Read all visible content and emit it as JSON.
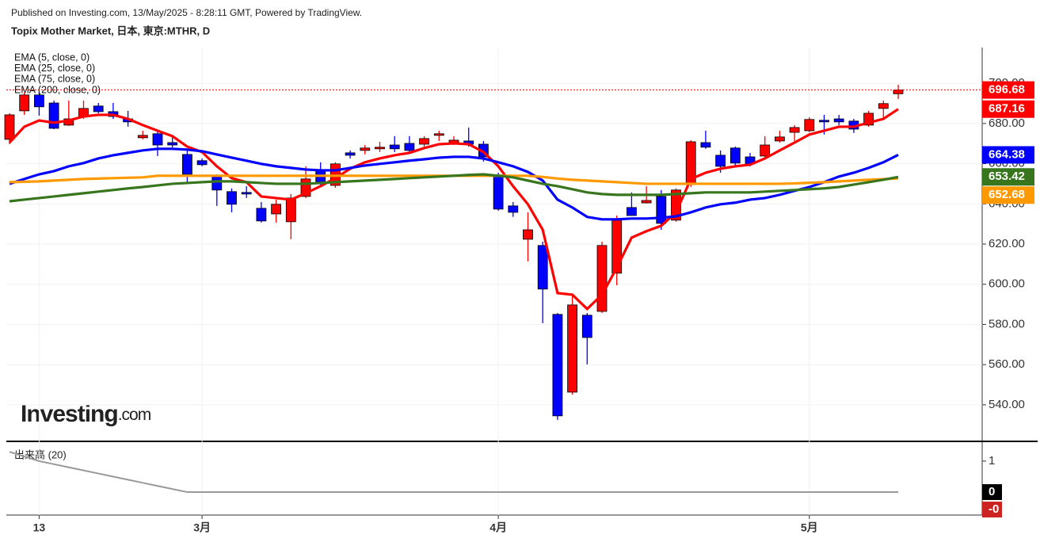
{
  "header": {
    "published": "Published on Investing.com, 13/May/2025 - 8:28:11 GMT, Powered by TradingView.",
    "brand": "Investing",
    "brand_suffix": ".com"
  },
  "chart_data": [
    {
      "type": "candlestick",
      "title": "Topix Mother Market, 日本, 東京:MTHR, D",
      "categories": [
        null,
        null,
        "13",
        null,
        null,
        null,
        null,
        null,
        null,
        null,
        null,
        null,
        null,
        "3月",
        null,
        null,
        null,
        null,
        null,
        null,
        null,
        null,
        null,
        null,
        null,
        null,
        null,
        null,
        null,
        null,
        null,
        null,
        null,
        "4月",
        null,
        null,
        null,
        null,
        null,
        null,
        null,
        null,
        null,
        null,
        null,
        null,
        null,
        null,
        null,
        null,
        null,
        null,
        null,
        null,
        "5月",
        null,
        null,
        null,
        null,
        null,
        null
      ],
      "open": [
        672.1,
        686.3,
        694.2,
        690.2,
        679.2,
        683.5,
        688.7,
        685.9,
        682.3,
        672.9,
        674.9,
        670.5,
        664.6,
        661.5,
        653.6,
        646.1,
        645.7,
        637.8,
        635.0,
        631.1,
        643.7,
        657.1,
        649.2,
        665.4,
        666.6,
        667.4,
        669.3,
        670.1,
        669.7,
        674.1,
        670.5,
        671.3,
        669.7,
        654.4,
        639.0,
        622.4,
        619.3,
        585.0,
        546.3,
        584.6,
        586.5,
        605.5,
        638.2,
        640.5,
        643.7,
        631.9,
        649.6,
        670.5,
        664.2,
        667.8,
        663.4,
        663.8,
        671.3,
        675.6,
        676.4,
        681.6,
        682.3,
        681.2,
        679.2,
        687.5,
        694.8
      ],
      "high": [
        685.1,
        695.4,
        695.8,
        691.4,
        691.4,
        691.4,
        690.2,
        690.2,
        686.3,
        676.4,
        676.4,
        674.1,
        666.6,
        662.6,
        654.7,
        647.7,
        648.8,
        640.9,
        642.1,
        644.9,
        658.7,
        660.7,
        660.7,
        666.6,
        669.3,
        670.9,
        673.7,
        673.7,
        673.7,
        676.4,
        673.7,
        678.0,
        671.3,
        655.5,
        640.9,
        635.8,
        621.2,
        585.7,
        594.8,
        585.7,
        621.2,
        634.2,
        645.7,
        648.8,
        646.9,
        647.7,
        671.7,
        676.4,
        666.6,
        668.5,
        665.4,
        673.7,
        676.4,
        679.2,
        683.1,
        684.3,
        684.3,
        682.3,
        686.3,
        691.4,
        699.3
      ],
      "low": [
        669.7,
        684.3,
        683.9,
        677.2,
        678.8,
        682.3,
        685.1,
        682.3,
        678.4,
        672.1,
        663.8,
        668.1,
        650.0,
        658.7,
        639.0,
        635.8,
        642.9,
        630.7,
        630.7,
        622.4,
        642.9,
        648.8,
        648.0,
        662.6,
        664.6,
        665.8,
        665.8,
        665.4,
        668.1,
        671.3,
        669.3,
        668.5,
        661.1,
        636.6,
        633.5,
        611.4,
        580.6,
        532.5,
        545.1,
        560.1,
        585.7,
        599.5,
        634.2,
        640.2,
        627.1,
        631.1,
        648.4,
        667.4,
        655.5,
        658.7,
        658.7,
        662.6,
        670.5,
        671.3,
        675.6,
        674.5,
        679.2,
        675.3,
        678.4,
        682.3,
        692.2
      ],
      "close": [
        684.3,
        694.2,
        688.3,
        677.6,
        682.3,
        687.5,
        685.9,
        683.5,
        680.8,
        674.1,
        669.3,
        669.3,
        654.7,
        659.5,
        646.9,
        639.8,
        644.9,
        631.5,
        639.8,
        642.9,
        652.4,
        650.0,
        659.9,
        664.2,
        667.8,
        668.2,
        667.4,
        666.6,
        672.5,
        674.9,
        671.7,
        669.7,
        663.4,
        637.4,
        635.8,
        627.1,
        597.6,
        534.5,
        589.7,
        573.5,
        619.3,
        631.9,
        634.2,
        641.7,
        630.3,
        646.9,
        670.9,
        668.2,
        658.7,
        660.3,
        659.9,
        669.3,
        673.3,
        678.0,
        682.0,
        680.8,
        680.8,
        677.2,
        685.1,
        689.9,
        696.68
      ],
      "up_color": "#ff0000",
      "down_color": "#0000ff",
      "series": [
        {
          "name": "EMA (5, close, 0)",
          "color": "#ff0000",
          "values": [
            670.5,
            678.4,
            681.5,
            680.4,
            681.5,
            683.5,
            684.3,
            684.3,
            682.3,
            679.2,
            676.4,
            673.7,
            668.5,
            665.8,
            658.7,
            652.8,
            650.8,
            643.7,
            642.9,
            642.1,
            645.3,
            648.8,
            652.8,
            657.5,
            660.7,
            662.6,
            664.2,
            665.4,
            667.8,
            669.7,
            670.1,
            669.7,
            665.8,
            658.7,
            648.8,
            639.8,
            627.1,
            595.6,
            594.8,
            587.7,
            594.8,
            608.2,
            623.2,
            626.4,
            629.1,
            635.8,
            652.4,
            655.5,
            657.5,
            658.7,
            659.5,
            662.6,
            666.6,
            670.5,
            674.5,
            676.4,
            678.4,
            678.4,
            680.4,
            682.3,
            687.16
          ]
        },
        {
          "name": "EMA (25, close, 0)",
          "color": "#0000ff",
          "values": [
            650.0,
            652.4,
            654.7,
            656.3,
            658.7,
            660.3,
            662.6,
            664.2,
            665.4,
            666.6,
            667.4,
            667.4,
            667.0,
            666.2,
            664.6,
            663.0,
            661.5,
            659.9,
            658.7,
            657.9,
            657.1,
            656.7,
            656.7,
            657.9,
            659.1,
            659.9,
            660.7,
            661.5,
            662.2,
            663.0,
            663.4,
            663.4,
            662.6,
            660.7,
            658.7,
            655.9,
            651.6,
            642.1,
            638.2,
            633.5,
            632.3,
            632.3,
            632.7,
            632.7,
            633.1,
            633.8,
            635.8,
            638.2,
            639.8,
            640.6,
            642.1,
            642.9,
            644.5,
            646.5,
            648.4,
            650.8,
            653.6,
            655.5,
            657.9,
            660.7,
            664.38
          ]
        },
        {
          "name": "EMA (75, close, 0)",
          "color": "#ff9900",
          "values": [
            650.8,
            651.0,
            651.2,
            651.6,
            652.0,
            652.4,
            652.6,
            652.8,
            653.0,
            653.2,
            654.0,
            654.0,
            654.0,
            654.0,
            654.0,
            654.0,
            654.0,
            654.0,
            654.0,
            654.0,
            654.0,
            654.0,
            654.0,
            654.0,
            654.0,
            654.0,
            654.0,
            654.0,
            654.0,
            654.0,
            654.0,
            654.0,
            654.0,
            654.0,
            654.0,
            654.0,
            653.4,
            652.6,
            652.0,
            651.6,
            651.2,
            650.8,
            650.4,
            650.0,
            650.0,
            650.0,
            650.0,
            650.0,
            650.0,
            650.0,
            650.0,
            650.0,
            650.0,
            650.2,
            650.5,
            650.8,
            651.2,
            651.6,
            652.0,
            652.3,
            652.68
          ]
        },
        {
          "name": "EMA (200, close, 0)",
          "color": "#38761d",
          "values": [
            641.3,
            642.1,
            642.9,
            643.7,
            644.5,
            645.3,
            646.1,
            646.9,
            647.7,
            648.4,
            649.2,
            650.0,
            650.4,
            650.8,
            651.2,
            651.2,
            650.8,
            650.4,
            650.0,
            650.0,
            650.0,
            650.4,
            650.8,
            651.2,
            651.6,
            652.0,
            652.4,
            652.8,
            653.2,
            653.6,
            654.0,
            654.4,
            654.7,
            654.0,
            653.2,
            651.6,
            650.0,
            648.8,
            647.3,
            645.7,
            644.9,
            644.5,
            644.5,
            644.5,
            644.5,
            644.9,
            645.3,
            645.7,
            645.7,
            645.7,
            645.7,
            646.1,
            646.5,
            646.9,
            647.3,
            647.7,
            648.4,
            649.6,
            650.8,
            652.0,
            653.42
          ]
        }
      ],
      "ylim": [
        522.6,
        717.8
      ],
      "yticks": [
        {
          "value": 540,
          "label": "540.00"
        },
        {
          "value": 560,
          "label": "560.00"
        },
        {
          "value": 580,
          "label": "580.00"
        },
        {
          "value": 600,
          "label": "600.00"
        },
        {
          "value": 620,
          "label": "620.00"
        },
        {
          "value": 640,
          "label": "640.00"
        },
        {
          "value": 660,
          "label": "660.00"
        },
        {
          "value": 680,
          "label": "680.00"
        },
        {
          "value": 700,
          "label": "700.00"
        }
      ],
      "grid": true
    },
    {
      "type": "line",
      "title": "出来高 (20)",
      "series": [
        {
          "color": "#999999",
          "values": [
            1.3,
            1.15,
            1.0,
            0.9,
            0.8,
            0.7,
            0.6,
            0.5,
            0.4,
            0.3,
            0.2,
            0.1,
            0,
            0,
            0,
            0,
            0,
            0,
            0,
            0,
            0,
            0,
            0,
            0,
            0,
            0,
            0,
            0,
            0,
            0,
            0,
            0,
            0,
            0,
            0,
            0,
            0,
            0,
            0,
            0,
            0,
            0,
            0,
            0,
            0,
            0,
            0,
            0,
            0,
            0,
            0,
            0,
            0,
            0,
            0,
            0,
            0,
            0,
            0,
            0,
            0
          ]
        }
      ],
      "ylim": [
        -0.74,
        1.56
      ],
      "yticks": [
        1,
        0
      ],
      "price_labels": [
        {
          "value": 0,
          "label": "0",
          "color": "#000000"
        },
        {
          "value": 0,
          "label": "-0",
          "color": "#cc2222"
        }
      ]
    }
  ]
}
